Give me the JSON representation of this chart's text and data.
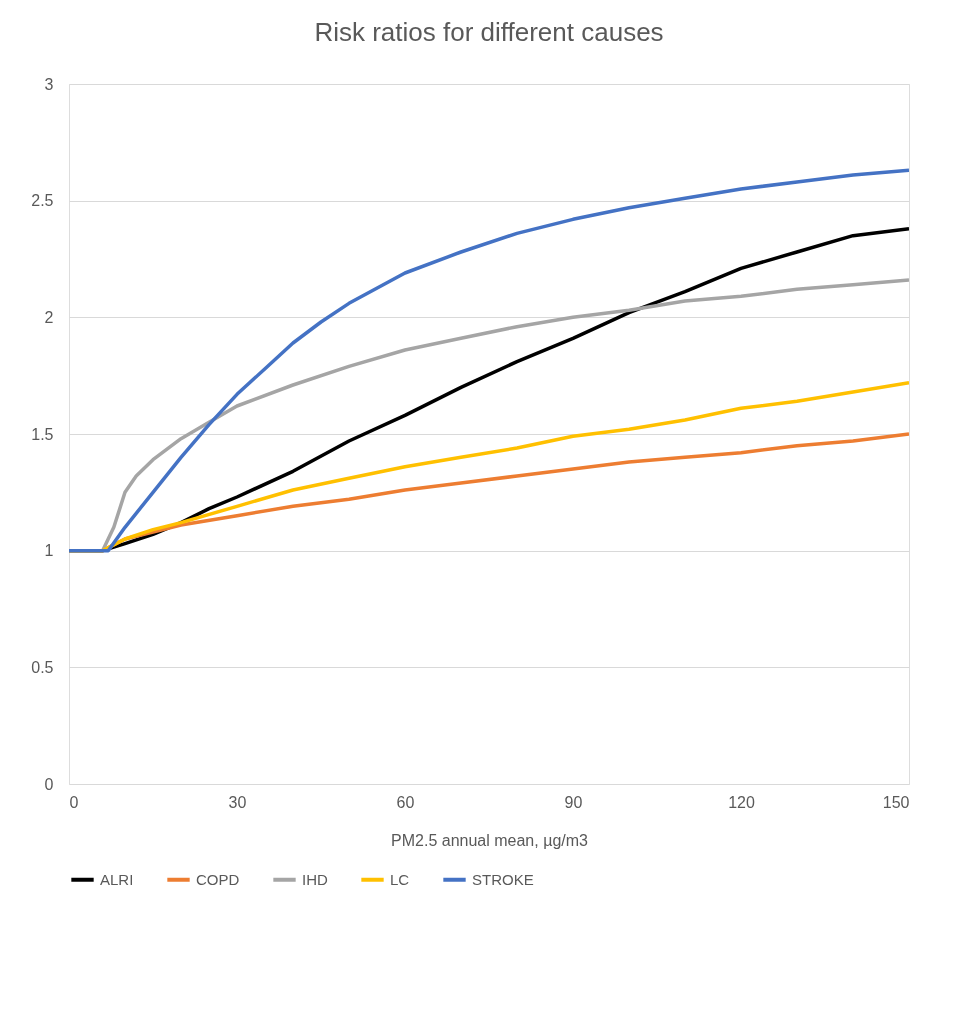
{
  "chart_data": {
    "type": "line",
    "title": "Risk ratios for different causes",
    "xlabel": "PM2.5 annual mean, µg/m3",
    "xlim": [
      0,
      150
    ],
    "xticks": [
      0,
      30,
      60,
      90,
      120,
      150
    ],
    "ylim": [
      0,
      3
    ],
    "yticks": [
      0,
      0.5,
      1,
      1.5,
      2,
      2.5,
      3
    ],
    "grid": "y",
    "legend": "bottom",
    "line_style": "solid",
    "marker": "none",
    "series": [
      {
        "name": "ALRI",
        "color": "#000000",
        "x": [
          0,
          6,
          10,
          15,
          20,
          25,
          30,
          40,
          50,
          60,
          70,
          80,
          90,
          100,
          110,
          120,
          130,
          140,
          150
        ],
        "values": [
          1,
          1,
          1.03,
          1.07,
          1.12,
          1.18,
          1.23,
          1.34,
          1.47,
          1.58,
          1.7,
          1.81,
          1.91,
          2.02,
          2.11,
          2.21,
          2.28,
          2.35,
          2.38
        ]
      },
      {
        "name": "COPD",
        "color": "#ed7d31",
        "x": [
          0,
          6,
          10,
          15,
          20,
          30,
          40,
          50,
          60,
          70,
          80,
          90,
          100,
          110,
          120,
          130,
          140,
          150
        ],
        "values": [
          1,
          1,
          1.05,
          1.08,
          1.11,
          1.15,
          1.19,
          1.22,
          1.26,
          1.29,
          1.32,
          1.35,
          1.38,
          1.4,
          1.42,
          1.45,
          1.47,
          1.5
        ]
      },
      {
        "name": "IHD",
        "color": "#a5a5a5",
        "x": [
          0,
          6,
          8,
          10,
          12,
          15,
          20,
          25,
          30,
          40,
          50,
          60,
          70,
          80,
          90,
          100,
          110,
          120,
          130,
          140,
          150
        ],
        "values": [
          1,
          1,
          1.1,
          1.25,
          1.32,
          1.39,
          1.48,
          1.55,
          1.62,
          1.71,
          1.79,
          1.86,
          1.91,
          1.96,
          2.0,
          2.03,
          2.07,
          2.09,
          2.12,
          2.14,
          2.16
        ]
      },
      {
        "name": "LC",
        "color": "#ffc000",
        "x": [
          0,
          6,
          10,
          15,
          20,
          30,
          40,
          50,
          60,
          70,
          80,
          90,
          100,
          110,
          120,
          130,
          140,
          150
        ],
        "values": [
          1,
          1,
          1.05,
          1.09,
          1.12,
          1.19,
          1.26,
          1.31,
          1.36,
          1.4,
          1.44,
          1.49,
          1.52,
          1.56,
          1.61,
          1.64,
          1.68,
          1.72
        ]
      },
      {
        "name": "STROKE",
        "color": "#4472c4",
        "x": [
          0,
          7,
          10,
          15,
          20,
          25,
          30,
          35,
          40,
          45,
          50,
          60,
          70,
          80,
          90,
          100,
          110,
          120,
          130,
          140,
          150
        ],
        "values": [
          1,
          1,
          1.1,
          1.25,
          1.4,
          1.54,
          1.67,
          1.78,
          1.89,
          1.98,
          2.06,
          2.19,
          2.28,
          2.36,
          2.42,
          2.47,
          2.51,
          2.55,
          2.58,
          2.61,
          2.63
        ]
      }
    ]
  }
}
